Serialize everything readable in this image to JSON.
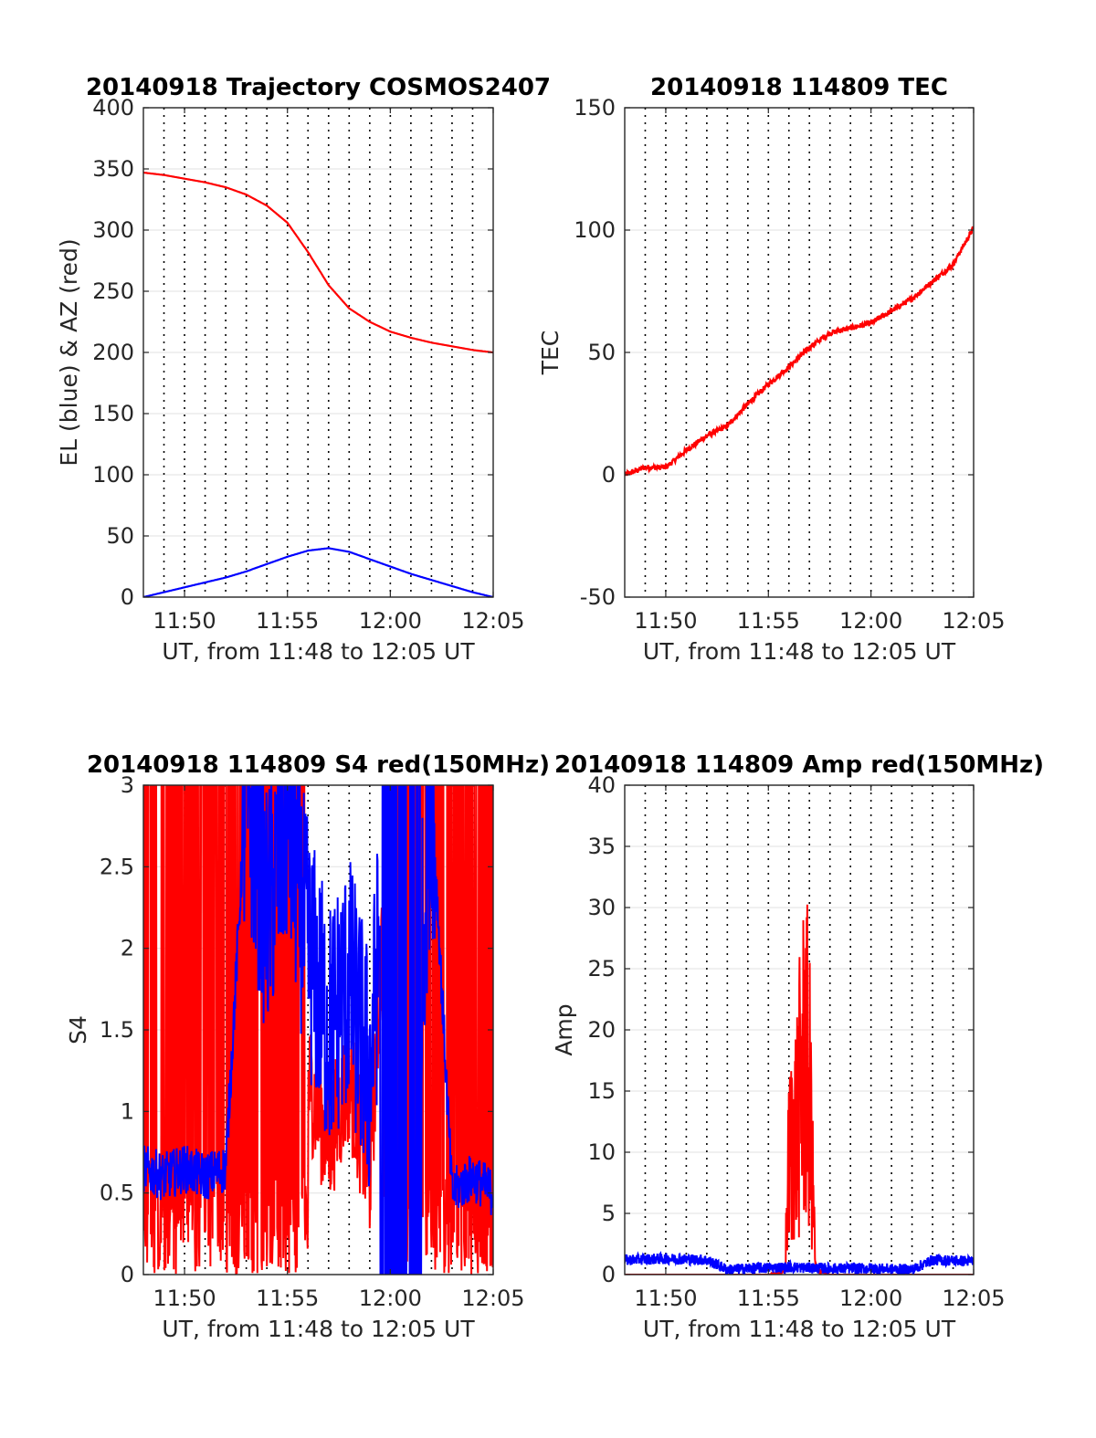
{
  "chart_data": [
    {
      "type": "line",
      "title": "20140918 Trajectory COSMOS2407",
      "xlabel": "UT, from 11:48 to 12:05 UT",
      "ylabel": "EL (blue) & AZ (red)",
      "xlim": [
        "11:48",
        "12:05"
      ],
      "ylim": [
        0,
        400
      ],
      "xticks": [
        "11:50",
        "11:55",
        "12:00",
        "12:05"
      ],
      "yticks": [
        "0",
        "50",
        "100",
        "150",
        "200",
        "250",
        "300",
        "350",
        "400"
      ],
      "grid": true,
      "series": [
        {
          "color": "#ff0000",
          "x": [
            "11:48",
            "11:49",
            "11:50",
            "11:51",
            "11:52",
            "11:53",
            "11:54",
            "11:55",
            "11:56",
            "11:57",
            "11:58",
            "11:59",
            "12:00",
            "12:01",
            "12:02",
            "12:03",
            "12:04",
            "12:05"
          ],
          "values": [
            347,
            345,
            342,
            339,
            335,
            329,
            320,
            306,
            282,
            255,
            236,
            225,
            217,
            212,
            208,
            205,
            202,
            200
          ]
        },
        {
          "color": "#0000ff",
          "x": [
            "11:48",
            "11:49",
            "11:50",
            "11:51",
            "11:52",
            "11:53",
            "11:54",
            "11:55",
            "11:56",
            "11:57",
            "11:58",
            "11:59",
            "12:00",
            "12:01",
            "12:02",
            "12:03",
            "12:04",
            "12:05"
          ],
          "values": [
            0,
            4,
            8,
            12,
            16,
            21,
            27,
            33,
            38,
            40,
            37,
            31,
            25,
            19,
            14,
            9,
            4,
            0
          ]
        }
      ]
    },
    {
      "type": "line",
      "title": "20140918 114809 TEC",
      "xlabel": "UT, from 11:48 to 12:05 UT",
      "ylabel": "TEC",
      "xlim": [
        "11:48",
        "12:05"
      ],
      "ylim": [
        -50,
        150
      ],
      "xticks": [
        "11:50",
        "11:55",
        "12:00",
        "12:05"
      ],
      "yticks": [
        "-50",
        "0",
        "50",
        "100",
        "150"
      ],
      "grid": true,
      "series": [
        {
          "color": "#ff0000",
          "x": [
            "11:48",
            "11:49",
            "11:50",
            "11:51",
            "11:52",
            "11:53",
            "11:54",
            "11:55",
            "11:56",
            "11:57",
            "11:58",
            "11:59",
            "12:00",
            "12:01",
            "12:02",
            "12:03",
            "12:04",
            "12:05"
          ],
          "values": [
            0,
            3,
            3,
            10,
            16,
            20,
            29,
            37,
            44,
            52,
            58,
            60,
            62,
            67,
            72,
            79,
            86,
            101
          ]
        }
      ]
    },
    {
      "type": "line",
      "title": "20140918 114809 S4 red(150MHz)",
      "xlabel": "UT, from 11:48 to 12:05 UT",
      "ylabel": "S4",
      "xlim": [
        "11:48",
        "12:05"
      ],
      "ylim": [
        0,
        3
      ],
      "xticks": [
        "11:50",
        "11:55",
        "12:00",
        "12:05"
      ],
      "yticks": [
        "0",
        "0.5",
        "1",
        "1.5",
        "2",
        "2.5",
        "3"
      ],
      "grid": true,
      "series": [
        {
          "color": "#ff0000",
          "x": [
            "11:48",
            "11:49",
            "11:50",
            "11:51",
            "11:52",
            "11:53",
            "11:54",
            "11:55",
            "11:56",
            "11:57",
            "11:58",
            "11:59",
            "12:00",
            "12:01",
            "12:02",
            "12:03",
            "12:04",
            "12:05"
          ],
          "values": [
            3,
            0,
            3,
            0,
            3,
            2.1,
            1.5,
            1.8,
            1.2,
            0.8,
            1.2,
            0.6,
            3,
            0,
            3,
            0.5,
            3,
            0.5
          ]
        },
        {
          "color": "#0000ff",
          "x": [
            "11:48",
            "11:49",
            "11:50",
            "11:51",
            "11:52",
            "11:53",
            "11:54",
            "11:55",
            "11:56",
            "11:57",
            "11:58",
            "11:59",
            "12:00",
            "12:01",
            "12:02",
            "12:03",
            "12:04",
            "12:05"
          ],
          "values": [
            0.65,
            0.6,
            0.65,
            0.6,
            0.65,
            3,
            2.2,
            2.8,
            2,
            1.5,
            1.8,
            1.2,
            3,
            0.8,
            3,
            0.5,
            0.6,
            0.5
          ]
        }
      ]
    },
    {
      "type": "line",
      "title": "20140918 114809 Amp red(150MHz)",
      "xlabel": "UT, from 11:48 to 12:05 UT",
      "ylabel": "Amp",
      "xlim": [
        "11:48",
        "12:05"
      ],
      "ylim": [
        0,
        40
      ],
      "xticks": [
        "11:50",
        "11:55",
        "12:00",
        "12:05"
      ],
      "yticks": [
        "0",
        "5",
        "10",
        "15",
        "20",
        "25",
        "30",
        "35",
        "40"
      ],
      "grid": true,
      "series": [
        {
          "color": "#ff0000",
          "x": [
            "11:48",
            "11:55",
            "11:55.8",
            "11:56",
            "11:56.4",
            "11:56.8",
            "11:57",
            "11:57.3",
            "11:58",
            "12:05"
          ],
          "values": [
            0,
            0,
            0.5,
            16,
            22,
            31.5,
            26,
            1,
            0,
            0
          ]
        },
        {
          "color": "#0000ff",
          "x": [
            "11:48",
            "11:50",
            "11:52",
            "11:53",
            "11:54",
            "11:56",
            "11:58",
            "12:00",
            "12:02",
            "12:03",
            "12:05"
          ],
          "values": [
            1.2,
            1.3,
            1.2,
            0.4,
            0.5,
            0.6,
            0.5,
            0.5,
            0.4,
            1.2,
            1.1
          ]
        }
      ]
    }
  ]
}
